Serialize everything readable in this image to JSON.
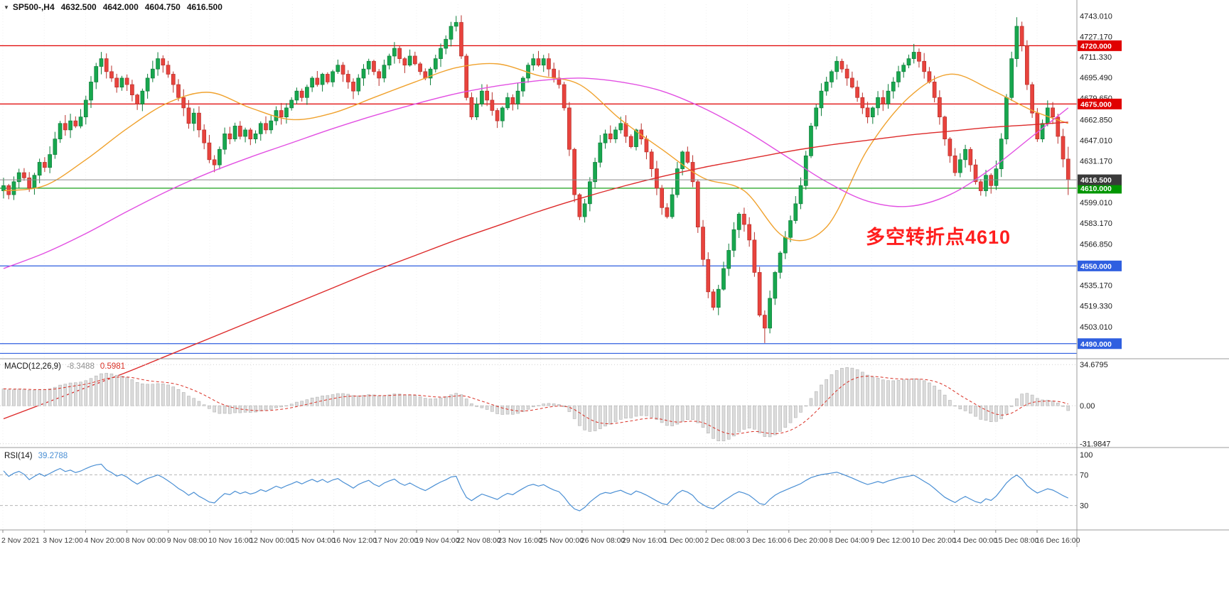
{
  "header": {
    "symbol_tf": "SP500-,H4",
    "open": "4632.500",
    "high": "4642.000",
    "low": "4604.750",
    "close": "4616.500"
  },
  "colors": {
    "up": "#17a74e",
    "up_stroke": "#0e7d3a",
    "down": "#e8433d",
    "down_stroke": "#b8302b",
    "ma_fast": "#f0a22e",
    "ma_mid": "#e24fe2",
    "ma_slow": "#dd2a2a",
    "level_red": "#e00000",
    "level_green": "#009600",
    "level_blue": "#2f5fe0",
    "current_line": "#8a8a8a",
    "current_badge": "#3a3a3a",
    "macd_hist_fill": "#dcdcdc",
    "macd_hist_stroke": "#b2b2b2",
    "macd_signal": "#d93025",
    "rsi_line": "#4a8fd4",
    "grid": "#f0f0f0",
    "separator": "#9b9b9b",
    "axis_text": "#1c1c1c",
    "annotation": "#ff1e1e"
  },
  "chart_data": {
    "type": "candlestick",
    "title": "SP500-,H4",
    "ylim": [
      4480,
      4752
    ],
    "price_ticks": [
      {
        "price": 4743.01,
        "label": "4743.010"
      },
      {
        "price": 4727.17,
        "label": "4727.170"
      },
      {
        "price": 4711.33,
        "label": "4711.330"
      },
      {
        "price": 4695.49,
        "label": "4695.490"
      },
      {
        "price": 4679.65,
        "label": "4679.650"
      },
      {
        "price": 4662.85,
        "label": "4662.850"
      },
      {
        "price": 4647.01,
        "label": "4647.010"
      },
      {
        "price": 4631.17,
        "label": "4631.170"
      },
      {
        "price": 4599.01,
        "label": "4599.010"
      },
      {
        "price": 4583.17,
        "label": "4583.170"
      },
      {
        "price": 4566.85,
        "label": "4566.850"
      },
      {
        "price": 4535.17,
        "label": "4535.170"
      },
      {
        "price": 4519.33,
        "label": "4519.330"
      },
      {
        "price": 4503.01,
        "label": "4503.010"
      }
    ],
    "time_labels": [
      "2 Nov 2021",
      "3 Nov 12:00",
      "4 Nov 20:00",
      "8 Nov 00:00",
      "9 Nov 08:00",
      "10 Nov 16:00",
      "12 Nov 00:00",
      "15 Nov 04:00",
      "16 Nov 12:00",
      "17 Nov 20:00",
      "19 Nov 04:00",
      "22 Nov 08:00",
      "23 Nov 16:00",
      "25 Nov 00:00",
      "26 Nov 08:00",
      "29 Nov 16:00",
      "1 Dec 00:00",
      "2 Dec 08:00",
      "3 Dec 16:00",
      "6 Dec 20:00",
      "8 Dec 04:00",
      "9 Dec 12:00",
      "10 Dec 20:00",
      "14 Dec 00:00",
      "15 Dec 08:00",
      "16 Dec 16:00"
    ],
    "first_open": 4608,
    "warmup_closes": [
      4525,
      4530,
      4536,
      4542,
      4548,
      4552,
      4558,
      4564,
      4570,
      4566,
      4572,
      4578,
      4584,
      4580,
      4586,
      4592,
      4588,
      4594,
      4600,
      4596,
      4590,
      4584,
      4590,
      4596,
      4602,
      4598,
      4604,
      4610,
      4606,
      4608
    ],
    "closes": [
      4612,
      4605,
      4615,
      4622,
      4618,
      4610,
      4620,
      4630,
      4626,
      4636,
      4648,
      4660,
      4655,
      4662,
      4658,
      4665,
      4678,
      4692,
      4704,
      4710,
      4700,
      4695,
      4688,
      4695,
      4690,
      4682,
      4675,
      4685,
      4695,
      4702,
      4710,
      4705,
      4698,
      4690,
      4680,
      4672,
      4660,
      4668,
      4655,
      4645,
      4632,
      4628,
      4640,
      4652,
      4648,
      4658,
      4650,
      4655,
      4648,
      4652,
      4660,
      4655,
      4662,
      4670,
      4665,
      4672,
      4678,
      4685,
      4680,
      4688,
      4695,
      4690,
      4698,
      4692,
      4700,
      4705,
      4698,
      4692,
      4685,
      4695,
      4702,
      4708,
      4700,
      4695,
      4705,
      4712,
      4718,
      4710,
      4705,
      4712,
      4706,
      4700,
      4695,
      4702,
      4710,
      4718,
      4725,
      4735,
      4738,
      4712,
      4680,
      4665,
      4675,
      4685,
      4678,
      4670,
      4662,
      4672,
      4680,
      4675,
      4685,
      4695,
      4705,
      4710,
      4705,
      4710,
      4702,
      4695,
      4690,
      4672,
      4640,
      4605,
      4588,
      4598,
      4615,
      4630,
      4645,
      4652,
      4648,
      4655,
      4660,
      4650,
      4642,
      4655,
      4648,
      4638,
      4625,
      4610,
      4595,
      4588,
      4605,
      4625,
      4638,
      4630,
      4615,
      4580,
      4555,
      4530,
      4518,
      4532,
      4548,
      4562,
      4578,
      4590,
      4582,
      4570,
      4545,
      4512,
      4502,
      4525,
      4545,
      4560,
      4572,
      4585,
      4598,
      4612,
      4635,
      4658,
      4672,
      4685,
      4692,
      4700,
      4708,
      4702,
      4695,
      4688,
      4680,
      4672,
      4665,
      4672,
      4680,
      4675,
      4685,
      4692,
      4700,
      4705,
      4710,
      4715,
      4708,
      4700,
      4692,
      4680,
      4665,
      4648,
      4635,
      4622,
      4632,
      4640,
      4628,
      4615,
      4608,
      4620,
      4612,
      4625,
      4648,
      4680,
      4710,
      4735,
      4720,
      4690,
      4668,
      4648,
      4660,
      4672,
      4665,
      4650,
      4632.5,
      4616.5
    ],
    "wick_overrides": {
      "88": [
        4743.0,
        null
      ],
      "148": [
        null,
        4490.5
      ],
      "197": [
        4742.0,
        null
      ],
      "207": [
        4642.0,
        4604.75
      ]
    },
    "moving_averages": [
      {
        "name": "ma-fast-orange",
        "color_key": "ma_fast",
        "anchor_step": 8,
        "values": [
          4608,
          4612,
          4632,
          4656,
          4676,
          4684,
          4672,
          4663,
          4668,
          4680,
          4692,
          4703,
          4706,
          4697,
          4690,
          4663,
          4640,
          4618,
          4608,
          4572,
          4580,
          4640,
          4680,
          4698,
          4686,
          4670,
          4660
        ]
      },
      {
        "name": "ma-mid-magenta",
        "color_key": "ma_mid",
        "anchor_step": 8,
        "values": [
          4548,
          4560,
          4575,
          4592,
          4608,
          4622,
          4634,
          4645,
          4656,
          4666,
          4675,
          4683,
          4689,
          4693,
          4695,
          4692,
          4685,
          4672,
          4655,
          4635,
          4615,
          4600,
          4596,
          4605,
          4625,
          4650,
          4672
        ]
      },
      {
        "name": "ma-slow-red",
        "color_key": "ma_slow",
        "anchor_step": 8,
        "values": [
          4432,
          4444,
          4456,
          4468,
          4481,
          4494,
          4507,
          4520,
          4533,
          4546,
          4558,
          4570,
          4581,
          4592,
          4602,
          4611,
          4619,
          4626,
          4632,
          4638,
          4643,
          4647,
          4651,
          4654,
          4657,
          4659,
          4661
        ]
      }
    ],
    "levels": [
      {
        "price": 4720.0,
        "label": "4720.000",
        "color_key": "level_red"
      },
      {
        "price": 4675.0,
        "label": "4675.000",
        "color_key": "level_red"
      },
      {
        "price": 4610.0,
        "label": "4610.000",
        "color_key": "level_green"
      },
      {
        "price": 4550.0,
        "label": "4550.000",
        "color_key": "level_blue"
      },
      {
        "price": 4490.0,
        "label": "4490.000",
        "color_key": "level_blue"
      },
      {
        "price": 4482.5,
        "label": null,
        "color_key": "level_blue"
      }
    ],
    "current_price": {
      "price": 4616.5,
      "label": "4616.500"
    },
    "annotation": {
      "text": "多空转折点4610"
    },
    "indicators": {
      "macd": {
        "name": "MACD(12,26,9)",
        "value_main": "-8.3488",
        "value_signal": "0.5981",
        "fast": 12,
        "slow": 26,
        "signal": 9,
        "ylim": [
          -34,
          36
        ],
        "axis_ticks": [
          {
            "value": 34.6795,
            "label": "34.6795"
          },
          {
            "value": 0,
            "label": "0.00"
          },
          {
            "value": -31.9847,
            "label": "-31.9847"
          }
        ]
      },
      "rsi": {
        "name": "RSI(14)",
        "value": "39.2788",
        "period": 14,
        "ylim": [
          0,
          100
        ],
        "levels": [
          70,
          30
        ],
        "axis_ticks": [
          {
            "value": 100,
            "label": "100"
          },
          {
            "value": 70,
            "label": "70"
          },
          {
            "value": 30,
            "label": "30"
          }
        ]
      }
    }
  }
}
